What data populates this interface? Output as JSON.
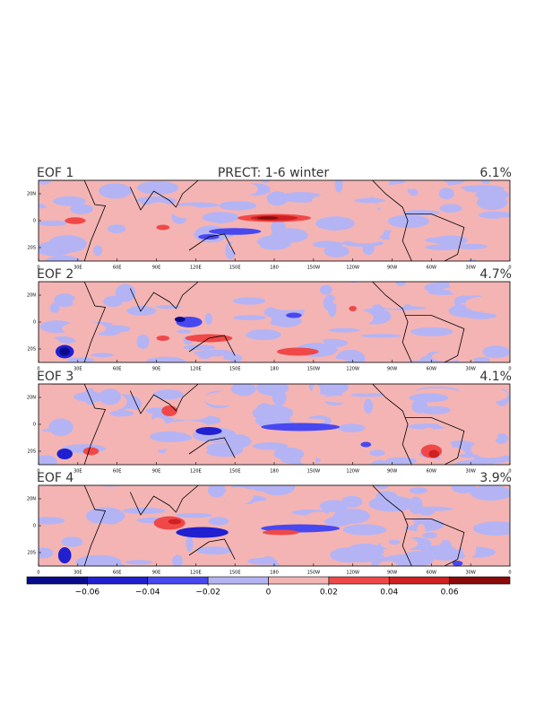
{
  "title": "PRECT: 1-6 winter",
  "panels": [
    {
      "label": "EOF 1",
      "percent": "6.1%"
    },
    {
      "label": "EOF 2",
      "percent": "4.7%"
    },
    {
      "label": "EOF 3",
      "percent": "4.1%"
    },
    {
      "label": "EOF 4",
      "percent": "3.9%"
    }
  ],
  "lon_ticks": [
    0,
    {
      "value": 30,
      "label": "30E"
    },
    {
      "value": 60,
      "label": "60E"
    },
    {
      "value": 90,
      "label": "90E"
    },
    {
      "value": 120,
      "label": "120E"
    },
    {
      "value": 150,
      "label": "150E"
    },
    180,
    {
      "value": 210,
      "label": "150W"
    },
    {
      "value": 240,
      "label": "120W"
    },
    {
      "value": 270,
      "label": "90W"
    },
    {
      "value": 300,
      "label": "60W"
    },
    {
      "value": 330,
      "label": "30W"
    },
    {
      "value": 360,
      "label": "0"
    }
  ],
  "lat_ticks": [
    {
      "value": 20,
      "label": "20N"
    },
    0,
    {
      "value": -20,
      "label": "20S"
    }
  ],
  "colorbar": {
    "ticks": [
      {
        "value": -0.06,
        "label": "−0.06"
      },
      {
        "value": -0.04,
        "label": "−0.04"
      },
      {
        "value": -0.02,
        "label": "−0.02"
      },
      0,
      0.02,
      0.04,
      0.06
    ],
    "colors": [
      "#0a0a8c",
      "#2020d0",
      "#4848f0",
      "#b4b4f4",
      "#f4b4b4",
      "#f04848",
      "#d02020",
      "#8c0a0a"
    ]
  }
}
